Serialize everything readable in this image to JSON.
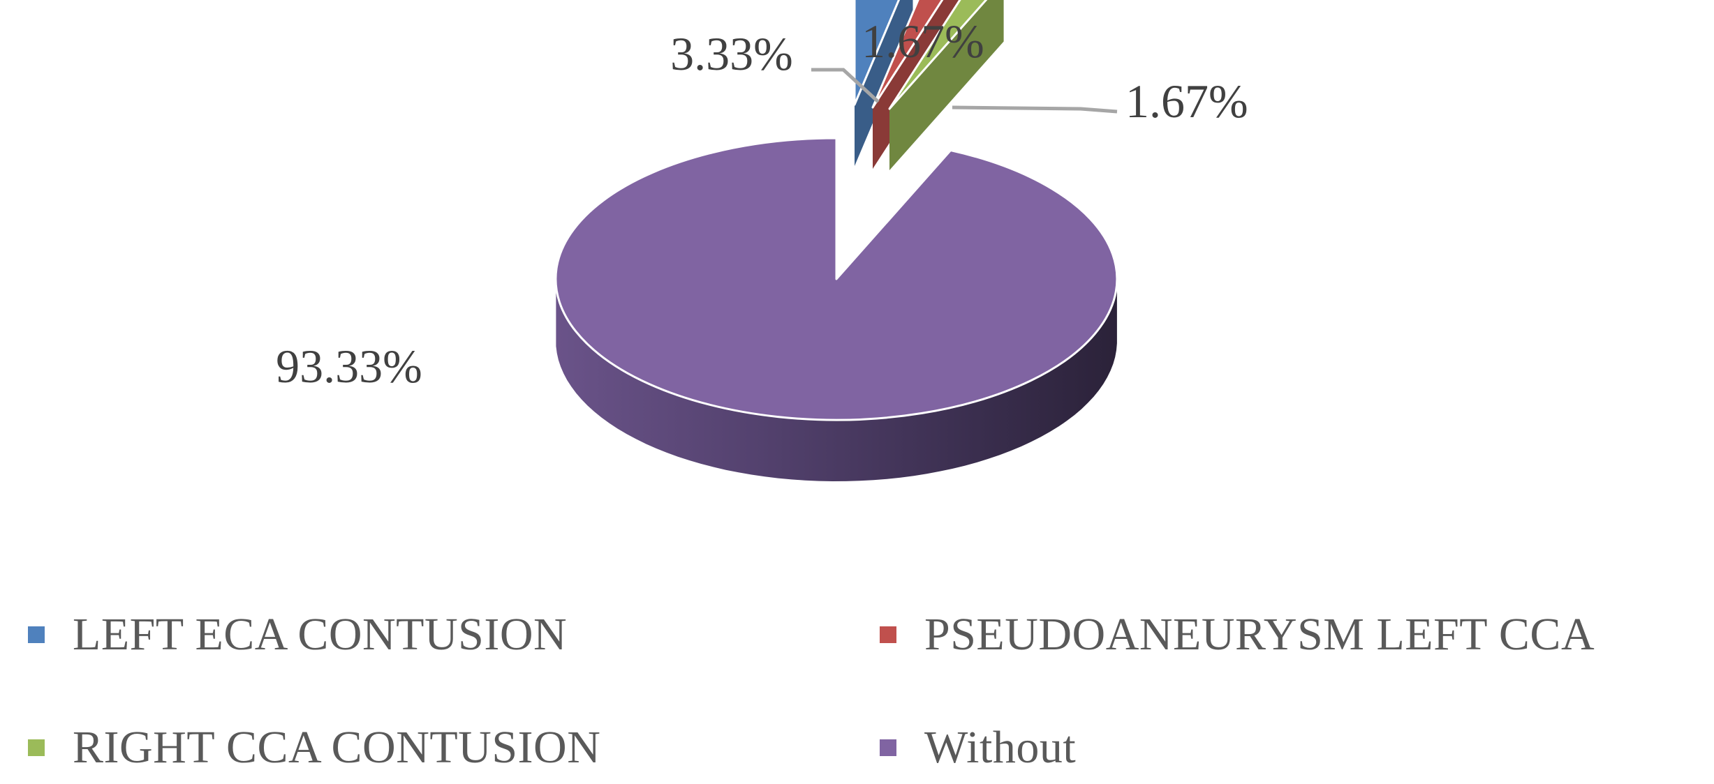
{
  "chart_data": {
    "type": "pie",
    "style": "3d-exploded",
    "slices": [
      {
        "name": "LEFT ECA CONTUSION",
        "value": 3.33,
        "label": "3.33%",
        "color": "#4F81BD"
      },
      {
        "name": "PSEUDOANEURYSM LEFT CCA",
        "value": 1.67,
        "label": "1.67%",
        "color": "#C0504D"
      },
      {
        "name": "RIGHT CCA CONTUSION",
        "value": 1.67,
        "label": "1.67%",
        "color": "#9BBB59"
      },
      {
        "name": "Without",
        "value": 93.33,
        "label": "93.33%",
        "color": "#8064A2"
      }
    ],
    "legend_position": "bottom"
  },
  "legend": {
    "items": [
      {
        "label": "LEFT ECA CONTUSION",
        "color": "#4F81BD"
      },
      {
        "label": "PSEUDOANEURYSM LEFT CCA",
        "color": "#C0504D"
      },
      {
        "label": "RIGHT CCA CONTUSION",
        "color": "#9BBB59"
      },
      {
        "label": "Without",
        "color": "#8064A2"
      }
    ]
  }
}
